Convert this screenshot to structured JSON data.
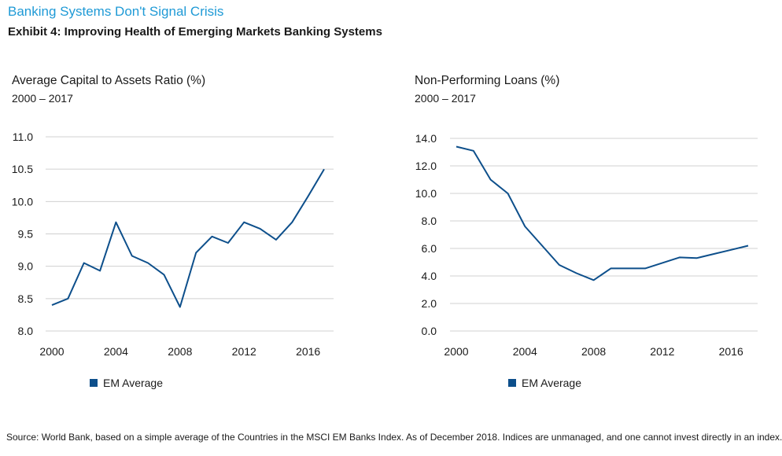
{
  "header": {
    "headline": "Banking Systems Don't Signal Crisis",
    "subhead": "Exhibit 4: Improving Health of Emerging Markets Banking Systems"
  },
  "colors": {
    "headline": "#1f9ad6",
    "series": "#0d4f8b",
    "grid": "#d0d0d0"
  },
  "chart_data": [
    {
      "type": "line",
      "title": "Average Capital to Assets Ratio (%)",
      "subtitle": "2000 – 2017",
      "x": [
        2000,
        2001,
        2002,
        2003,
        2004,
        2005,
        2006,
        2007,
        2008,
        2009,
        2010,
        2011,
        2012,
        2013,
        2014,
        2015,
        2016,
        2017
      ],
      "series": [
        {
          "name": "EM Average",
          "values": [
            8.4,
            8.5,
            9.05,
            8.93,
            9.68,
            9.16,
            9.05,
            8.87,
            8.37,
            9.21,
            9.46,
            9.36,
            9.68,
            9.58,
            9.41,
            9.68,
            10.08,
            10.5
          ]
        }
      ],
      "xticks": [
        "2000",
        "2004",
        "2008",
        "2012",
        "2016"
      ],
      "yticks": [
        "8.0",
        "8.5",
        "9.0",
        "9.5",
        "10.0",
        "10.5",
        "11.0"
      ],
      "ylim": [
        8.0,
        11.0
      ],
      "grid": true,
      "legend": "bottom"
    },
    {
      "type": "line",
      "title": "Non-Performing Loans (%)",
      "subtitle": "2000 – 2017",
      "x": [
        2000,
        2001,
        2002,
        2003,
        2004,
        2005,
        2006,
        2007,
        2008,
        2009,
        2010,
        2011,
        2012,
        2013,
        2014,
        2015,
        2016,
        2017
      ],
      "series": [
        {
          "name": "EM Average",
          "values": [
            13.4,
            13.1,
            11.0,
            10.0,
            7.6,
            6.2,
            4.8,
            4.2,
            3.7,
            4.55,
            4.55,
            4.55,
            4.95,
            5.35,
            5.3,
            5.6,
            5.9,
            6.2
          ]
        }
      ],
      "xticks": [
        "2000",
        "2004",
        "2008",
        "2012",
        "2016"
      ],
      "yticks": [
        "0.0",
        "2.0",
        "4.0",
        "6.0",
        "8.0",
        "10.0",
        "12.0",
        "14.0"
      ],
      "ylim": [
        0,
        14
      ],
      "grid": true,
      "legend": "bottom"
    }
  ],
  "source_note": "Source: World Bank, based on a simple average of the Countries in the MSCI EM Banks Index. As of December 2018. Indices are unmanaged, and one cannot invest directly in an index."
}
